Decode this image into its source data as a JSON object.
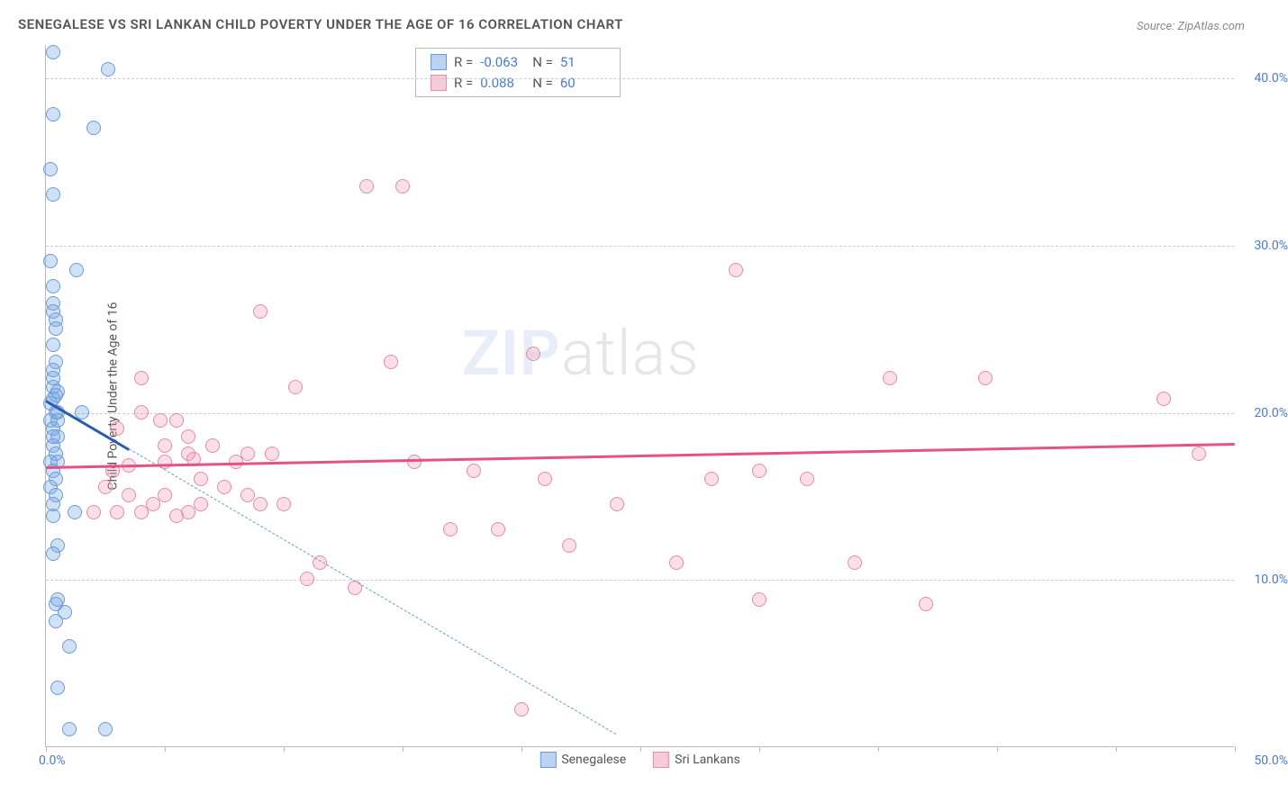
{
  "title": "SENEGALESE VS SRI LANKAN CHILD POVERTY UNDER THE AGE OF 16 CORRELATION CHART",
  "source": "Source: ZipAtlas.com",
  "watermark_bold": "ZIP",
  "watermark_light": "atlas",
  "y_axis_title": "Child Poverty Under the Age of 16",
  "chart": {
    "type": "scatter",
    "xlim": [
      0,
      50
    ],
    "ylim": [
      0,
      42
    ],
    "x_ticks": [
      0,
      5,
      10,
      15,
      20,
      25,
      30,
      35,
      40,
      45,
      50
    ],
    "x_tick_labels_shown": {
      "0": "0.0%",
      "50": "50.0%"
    },
    "y_gridlines": [
      10,
      20,
      30,
      40
    ],
    "y_tick_labels": {
      "10": "10.0%",
      "20": "20.0%",
      "30": "30.0%",
      "40": "40.0%"
    },
    "background_color": "#ffffff",
    "grid_color": "#cccccc",
    "marker_radius": 8,
    "series": [
      {
        "name": "Senegalese",
        "color_fill": "rgba(120,165,225,0.35)",
        "color_stroke": "#6a9bd8",
        "trend_color": "#2a5bb0",
        "trend_style_solid_then_dashed": true,
        "R": "-0.063",
        "N": "51",
        "trend": {
          "x1": 0,
          "y1": 20.8,
          "x2": 24,
          "y2": 0.8,
          "solid_until_x": 3.5
        },
        "points": [
          [
            0.3,
            41.5
          ],
          [
            2.6,
            40.5
          ],
          [
            0.3,
            37.8
          ],
          [
            2.0,
            37.0
          ],
          [
            0.2,
            34.5
          ],
          [
            0.3,
            33.0
          ],
          [
            0.2,
            29.0
          ],
          [
            1.3,
            28.5
          ],
          [
            0.3,
            27.5
          ],
          [
            0.3,
            26.5
          ],
          [
            0.4,
            25.5
          ],
          [
            0.4,
            25.0
          ],
          [
            0.3,
            24.0
          ],
          [
            0.4,
            23.0
          ],
          [
            0.3,
            22.0
          ],
          [
            0.3,
            21.5
          ],
          [
            0.4,
            21.0
          ],
          [
            0.2,
            20.5
          ],
          [
            0.4,
            20.0
          ],
          [
            0.5,
            20.0
          ],
          [
            1.5,
            20.0
          ],
          [
            0.2,
            19.5
          ],
          [
            0.3,
            19.0
          ],
          [
            0.5,
            18.5
          ],
          [
            0.3,
            18.0
          ],
          [
            0.4,
            17.5
          ],
          [
            0.2,
            17.0
          ],
          [
            0.5,
            17.0
          ],
          [
            0.3,
            16.5
          ],
          [
            0.4,
            16.0
          ],
          [
            0.2,
            15.5
          ],
          [
            0.3,
            13.8
          ],
          [
            1.2,
            14.0
          ],
          [
            0.5,
            12.0
          ],
          [
            0.3,
            11.5
          ],
          [
            0.4,
            8.5
          ],
          [
            0.8,
            8.0
          ],
          [
            0.4,
            7.5
          ],
          [
            1.0,
            6.0
          ],
          [
            0.5,
            3.5
          ],
          [
            1.0,
            1.0
          ],
          [
            2.5,
            1.0
          ],
          [
            0.3,
            22.5
          ],
          [
            0.5,
            19.5
          ],
          [
            0.3,
            18.5
          ],
          [
            0.4,
            15.0
          ],
          [
            0.3,
            14.5
          ],
          [
            0.5,
            8.8
          ],
          [
            0.3,
            20.8
          ],
          [
            0.5,
            21.2
          ],
          [
            0.3,
            26.0
          ]
        ]
      },
      {
        "name": "Sri Lankans",
        "color_fill": "rgba(240,150,175,0.3)",
        "color_stroke": "#e88aa8",
        "trend_color": "#e84f88",
        "trend_style_solid_then_dashed": false,
        "R": "0.088",
        "N": "60",
        "trend": {
          "x1": 0,
          "y1": 16.8,
          "x2": 50,
          "y2": 18.2
        },
        "points": [
          [
            13.5,
            33.5
          ],
          [
            15.0,
            33.5
          ],
          [
            29.0,
            28.5
          ],
          [
            9.0,
            26.0
          ],
          [
            20.5,
            23.5
          ],
          [
            14.5,
            23.0
          ],
          [
            4.0,
            22.0
          ],
          [
            10.5,
            21.5
          ],
          [
            39.5,
            22.0
          ],
          [
            47.0,
            20.8
          ],
          [
            35.5,
            22.0
          ],
          [
            4.0,
            20.0
          ],
          [
            5.5,
            19.5
          ],
          [
            3.0,
            19.0
          ],
          [
            6.0,
            18.5
          ],
          [
            7.0,
            18.0
          ],
          [
            8.5,
            17.5
          ],
          [
            9.5,
            17.5
          ],
          [
            6.0,
            17.5
          ],
          [
            8.0,
            17.0
          ],
          [
            5.0,
            17.0
          ],
          [
            48.5,
            17.5
          ],
          [
            18.0,
            16.5
          ],
          [
            30.0,
            16.5
          ],
          [
            21.0,
            16.0
          ],
          [
            32.0,
            16.0
          ],
          [
            6.5,
            16.0
          ],
          [
            2.5,
            15.5
          ],
          [
            3.5,
            15.0
          ],
          [
            5.0,
            15.0
          ],
          [
            6.5,
            14.5
          ],
          [
            10.0,
            14.5
          ],
          [
            9.0,
            14.5
          ],
          [
            2.0,
            14.0
          ],
          [
            3.0,
            14.0
          ],
          [
            4.0,
            14.0
          ],
          [
            5.5,
            13.8
          ],
          [
            24.0,
            14.5
          ],
          [
            17.0,
            13.0
          ],
          [
            19.0,
            13.0
          ],
          [
            22.0,
            12.0
          ],
          [
            26.5,
            11.0
          ],
          [
            34.0,
            11.0
          ],
          [
            11.5,
            11.0
          ],
          [
            11.0,
            10.0
          ],
          [
            13.0,
            9.5
          ],
          [
            37.0,
            8.5
          ],
          [
            30.0,
            8.8
          ],
          [
            20.0,
            2.2
          ],
          [
            7.5,
            15.5
          ],
          [
            4.5,
            14.5
          ],
          [
            6.0,
            14.0
          ],
          [
            2.8,
            16.5
          ],
          [
            3.5,
            16.8
          ],
          [
            5.0,
            18.0
          ],
          [
            8.5,
            15.0
          ],
          [
            4.8,
            19.5
          ],
          [
            6.2,
            17.2
          ],
          [
            15.5,
            17.0
          ],
          [
            28.0,
            16.0
          ]
        ]
      }
    ]
  },
  "stats_box": {
    "rows": [
      {
        "swatch": "blue",
        "R_label": "R =",
        "R": "-0.063",
        "N_label": "N =",
        "N": "51"
      },
      {
        "swatch": "pink",
        "R_label": "R =",
        "R": "0.088",
        "N_label": "N =",
        "N": "60"
      }
    ]
  },
  "bottom_legend": [
    {
      "swatch": "blue",
      "label": "Senegalese"
    },
    {
      "swatch": "pink",
      "label": "Sri Lankans"
    }
  ]
}
